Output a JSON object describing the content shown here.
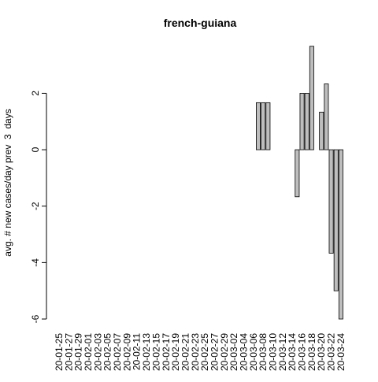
{
  "chart_data": {
    "type": "bar",
    "title": "french-guiana",
    "ylabel": "avg. # new cases/day prev  3  days",
    "categories": [
      "20-01-25",
      null,
      "20-01-27",
      null,
      "20-01-29",
      null,
      "20-02-01",
      null,
      "20-02-03",
      null,
      "20-02-05",
      null,
      "20-02-07",
      null,
      "20-02-09",
      null,
      "20-02-11",
      null,
      "20-02-13",
      null,
      "20-02-15",
      null,
      "20-02-17",
      null,
      "20-02-19",
      null,
      "20-02-21",
      null,
      "20-02-23",
      null,
      "20-02-25",
      null,
      "20-02-27",
      null,
      "20-02-29",
      null,
      "20-03-02",
      null,
      "20-03-04",
      null,
      "20-03-06",
      null,
      "20-03-08",
      null,
      "20-03-10",
      null,
      "20-03-12",
      null,
      "20-03-14",
      null,
      "20-03-16",
      null,
      "20-03-18",
      null,
      "20-03-20",
      null,
      "20-03-22",
      null,
      "20-03-24"
    ],
    "values": [
      0,
      0,
      0,
      0,
      0,
      0,
      0,
      0,
      0,
      0,
      0,
      0,
      0,
      0,
      0,
      0,
      0,
      0,
      0,
      0,
      0,
      0,
      0,
      0,
      0,
      0,
      0,
      0,
      0,
      0,
      0,
      0,
      0,
      0,
      0,
      0,
      0,
      0,
      0,
      0,
      0,
      1.667,
      1.667,
      1.667,
      0,
      0,
      0,
      0,
      0,
      -1.667,
      2,
      2,
      3.667,
      0,
      1.333,
      2.333,
      -3.667,
      -5,
      -6
    ],
    "color": "#bebebe",
    "ylim": [
      -6.39,
      4.05
    ],
    "yticks": [
      -6,
      -4,
      -2,
      0,
      2
    ]
  }
}
